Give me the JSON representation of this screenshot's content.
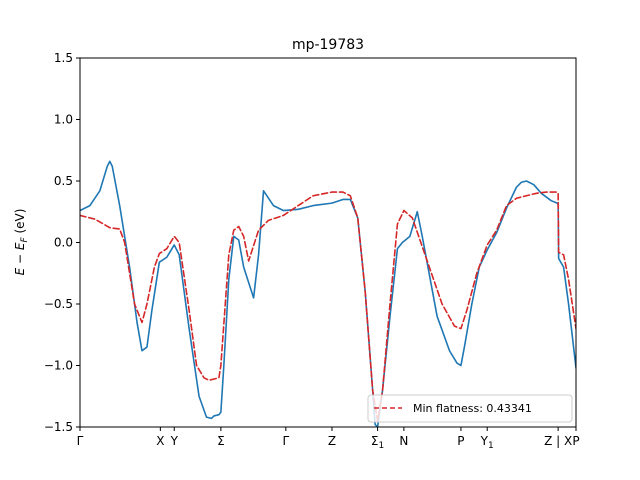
{
  "chart_data": {
    "type": "line",
    "title": "mp-19783",
    "ylabel": "E − E_F (eV)",
    "ylabel_main": "E − E",
    "ylabel_sub": "F",
    "ylabel_tail": " (eV)",
    "ylim": [
      -1.5,
      1.5
    ],
    "yticks": [
      -1.5,
      -1.0,
      -0.5,
      0.0,
      0.5,
      1.0,
      1.5
    ],
    "ytick_labels": [
      "−1.5",
      "−1.0",
      "−0.5",
      "0.0",
      "0.5",
      "1.0",
      "1.5"
    ],
    "xlim": [
      0,
      1
    ],
    "xticks": [
      {
        "pos": 0.0,
        "label": "Γ"
      },
      {
        "pos": 0.162,
        "label": "X"
      },
      {
        "pos": 0.19,
        "label": "Y"
      },
      {
        "pos": 0.284,
        "label": "Σ"
      },
      {
        "pos": 0.415,
        "label": "Γ"
      },
      {
        "pos": 0.508,
        "label": "Z"
      },
      {
        "pos": 0.6,
        "label": "Σ",
        "sub": "1"
      },
      {
        "pos": 0.653,
        "label": "N"
      },
      {
        "pos": 0.768,
        "label": "P"
      },
      {
        "pos": 0.821,
        "label": "Y",
        "sub": "1"
      },
      {
        "pos": 0.964,
        "label": "Z | X"
      },
      {
        "pos": 1.0,
        "label": "P"
      }
    ],
    "legend": {
      "placement": "lower-right",
      "entries": [
        "Min flatness: 0.43341"
      ]
    },
    "grid": false,
    "series": [
      {
        "color": "#1f77b4",
        "style": "solid",
        "points": [
          [
            0.0,
            0.26
          ],
          [
            0.02,
            0.3
          ],
          [
            0.04,
            0.42
          ],
          [
            0.055,
            0.62
          ],
          [
            0.06,
            0.66
          ],
          [
            0.065,
            0.62
          ],
          [
            0.08,
            0.3
          ],
          [
            0.1,
            -0.2
          ],
          [
            0.115,
            -0.65
          ],
          [
            0.125,
            -0.88
          ],
          [
            0.135,
            -0.85
          ],
          [
            0.145,
            -0.55
          ],
          [
            0.16,
            -0.16
          ],
          [
            0.175,
            -0.12
          ],
          [
            0.19,
            -0.02
          ],
          [
            0.2,
            -0.1
          ],
          [
            0.22,
            -0.7
          ],
          [
            0.24,
            -1.25
          ],
          [
            0.255,
            -1.42
          ],
          [
            0.265,
            -1.43
          ],
          [
            0.27,
            -1.41
          ],
          [
            0.28,
            -1.4
          ],
          [
            0.284,
            -1.38
          ],
          [
            0.29,
            -1.0
          ],
          [
            0.3,
            -0.3
          ],
          [
            0.31,
            0.05
          ],
          [
            0.32,
            0.02
          ],
          [
            0.33,
            -0.2
          ],
          [
            0.35,
            -0.45
          ],
          [
            0.36,
            -0.1
          ],
          [
            0.37,
            0.42
          ],
          [
            0.38,
            0.36
          ],
          [
            0.39,
            0.3
          ],
          [
            0.41,
            0.26
          ],
          [
            0.44,
            0.27
          ],
          [
            0.47,
            0.3
          ],
          [
            0.508,
            0.32
          ],
          [
            0.53,
            0.35
          ],
          [
            0.545,
            0.35
          ],
          [
            0.56,
            0.2
          ],
          [
            0.575,
            -0.4
          ],
          [
            0.59,
            -1.2
          ],
          [
            0.595,
            -1.48
          ],
          [
            0.6,
            -1.5
          ],
          [
            0.61,
            -1.2
          ],
          [
            0.625,
            -0.6
          ],
          [
            0.64,
            -0.05
          ],
          [
            0.65,
            0.0
          ],
          [
            0.665,
            0.05
          ],
          [
            0.68,
            0.25
          ],
          [
            0.69,
            0.05
          ],
          [
            0.72,
            -0.6
          ],
          [
            0.745,
            -0.88
          ],
          [
            0.76,
            -0.98
          ],
          [
            0.768,
            -1.0
          ],
          [
            0.775,
            -0.85
          ],
          [
            0.79,
            -0.5
          ],
          [
            0.805,
            -0.2
          ],
          [
            0.821,
            -0.06
          ],
          [
            0.84,
            0.08
          ],
          [
            0.86,
            0.28
          ],
          [
            0.88,
            0.45
          ],
          [
            0.89,
            0.49
          ],
          [
            0.9,
            0.5
          ],
          [
            0.915,
            0.47
          ],
          [
            0.93,
            0.4
          ],
          [
            0.95,
            0.34
          ],
          [
            0.962,
            0.32
          ],
          [
            0.964,
            0.31
          ],
          [
            0.965,
            -0.13
          ],
          [
            0.975,
            -0.2
          ],
          [
            0.985,
            -0.5
          ],
          [
            1.0,
            -1.02
          ]
        ]
      },
      {
        "color": "#d62728",
        "style": "dashed",
        "name": "Min flatness: 0.43341",
        "points": [
          [
            0.0,
            0.22
          ],
          [
            0.03,
            0.19
          ],
          [
            0.06,
            0.12
          ],
          [
            0.08,
            0.11
          ],
          [
            0.09,
            0.0
          ],
          [
            0.11,
            -0.5
          ],
          [
            0.125,
            -0.65
          ],
          [
            0.135,
            -0.5
          ],
          [
            0.15,
            -0.2
          ],
          [
            0.16,
            -0.09
          ],
          [
            0.175,
            -0.05
          ],
          [
            0.19,
            0.05
          ],
          [
            0.2,
            0.0
          ],
          [
            0.22,
            -0.55
          ],
          [
            0.235,
            -1.0
          ],
          [
            0.25,
            -1.1
          ],
          [
            0.26,
            -1.12
          ],
          [
            0.28,
            -1.1
          ],
          [
            0.284,
            -1.0
          ],
          [
            0.3,
            -0.1
          ],
          [
            0.31,
            0.1
          ],
          [
            0.32,
            0.13
          ],
          [
            0.33,
            0.05
          ],
          [
            0.34,
            -0.15
          ],
          [
            0.36,
            0.1
          ],
          [
            0.38,
            0.18
          ],
          [
            0.41,
            0.22
          ],
          [
            0.44,
            0.3
          ],
          [
            0.47,
            0.38
          ],
          [
            0.508,
            0.41
          ],
          [
            0.53,
            0.41
          ],
          [
            0.545,
            0.38
          ],
          [
            0.56,
            0.2
          ],
          [
            0.575,
            -0.4
          ],
          [
            0.59,
            -1.2
          ],
          [
            0.6,
            -1.45
          ],
          [
            0.61,
            -1.2
          ],
          [
            0.625,
            -0.5
          ],
          [
            0.64,
            0.15
          ],
          [
            0.653,
            0.26
          ],
          [
            0.67,
            0.2
          ],
          [
            0.7,
            -0.15
          ],
          [
            0.73,
            -0.5
          ],
          [
            0.755,
            -0.68
          ],
          [
            0.768,
            -0.7
          ],
          [
            0.78,
            -0.55
          ],
          [
            0.8,
            -0.25
          ],
          [
            0.821,
            -0.02
          ],
          [
            0.84,
            0.1
          ],
          [
            0.86,
            0.3
          ],
          [
            0.88,
            0.36
          ],
          [
            0.9,
            0.38
          ],
          [
            0.92,
            0.4
          ],
          [
            0.94,
            0.41
          ],
          [
            0.962,
            0.41
          ],
          [
            0.964,
            0.4
          ],
          [
            0.965,
            -0.08
          ],
          [
            0.975,
            -0.1
          ],
          [
            0.985,
            -0.3
          ],
          [
            1.0,
            -0.7
          ]
        ]
      }
    ]
  }
}
